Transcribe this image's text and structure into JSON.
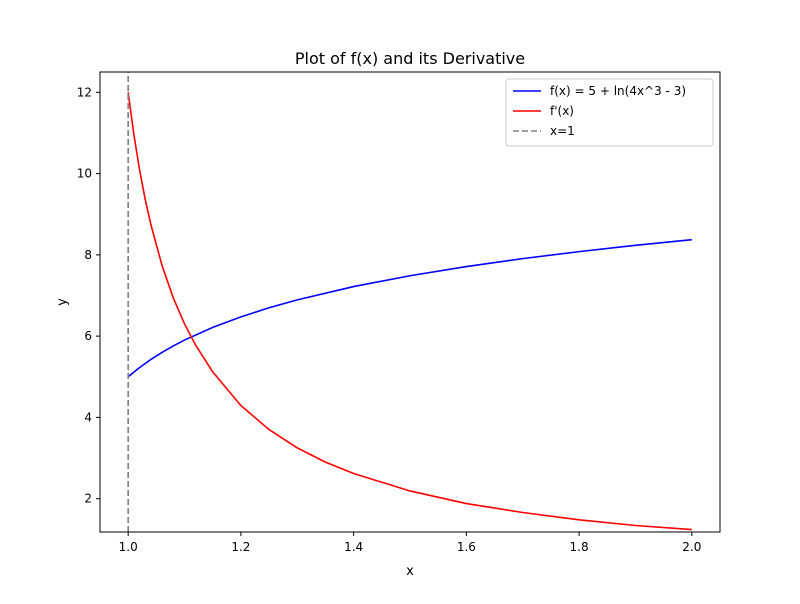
{
  "chart_data": {
    "type": "line",
    "title": "Plot of f(x) and its Derivative",
    "xlabel": "x",
    "ylabel": "y",
    "xlim": [
      0.95,
      2.05
    ],
    "ylim": [
      1.18,
      12.5
    ],
    "xticks": [
      1.0,
      1.2,
      1.4,
      1.6,
      1.8,
      2.0
    ],
    "xtick_labels": [
      "1.0",
      "1.2",
      "1.4",
      "1.6",
      "1.8",
      "2.0"
    ],
    "yticks": [
      2,
      4,
      6,
      8,
      10,
      12
    ],
    "ytick_labels": [
      "2",
      "4",
      "6",
      "8",
      "10",
      "12"
    ],
    "grid": false,
    "legend_position": "top-right",
    "series": [
      {
        "name": "f(x) = 5 + ln(4x^3 - 3)",
        "color": "#0000ff",
        "style": "solid",
        "x": [
          1.0,
          1.02,
          1.04,
          1.06,
          1.08,
          1.1,
          1.15,
          1.2,
          1.25,
          1.3,
          1.4,
          1.5,
          1.6,
          1.7,
          1.8,
          1.9,
          2.0
        ],
        "y": [
          5.0,
          5.226,
          5.424,
          5.6,
          5.759,
          5.903,
          6.215,
          6.475,
          6.699,
          6.893,
          7.22,
          7.486,
          7.712,
          7.907,
          8.08,
          8.234,
          8.373
        ]
      },
      {
        "name": "f'(x)",
        "color": "#ff0000",
        "style": "solid",
        "x": [
          1.0,
          1.01,
          1.02,
          1.03,
          1.04,
          1.06,
          1.08,
          1.1,
          1.12,
          1.15,
          1.2,
          1.25,
          1.3,
          1.35,
          1.4,
          1.5,
          1.6,
          1.7,
          1.8,
          1.9,
          2.0
        ],
        "y": [
          12.0,
          10.97,
          10.11,
          9.38,
          8.76,
          7.74,
          6.94,
          6.3,
          5.77,
          5.12,
          4.29,
          3.7,
          3.25,
          2.9,
          2.62,
          2.19,
          1.88,
          1.66,
          1.48,
          1.34,
          1.24
        ]
      },
      {
        "name": "x=1",
        "color": "#808080",
        "style": "dashed",
        "x": [
          1.0,
          1.0
        ],
        "y": [
          1.18,
          12.5
        ]
      }
    ]
  }
}
